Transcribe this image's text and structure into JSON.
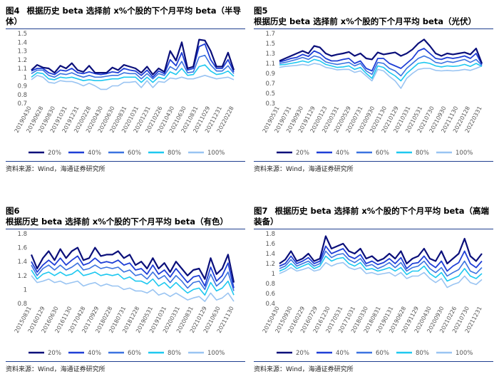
{
  "source_note": "资料来源：Wind，海通证券研究所",
  "legend_labels": [
    "20%",
    "40%",
    "60%",
    "80%",
    "100%"
  ],
  "series_colors": [
    "#0a0f7a",
    "#1f3fd6",
    "#3b73e0",
    "#1ec8f0",
    "#99c4f2"
  ],
  "chart_data": [
    {
      "id": "fig4",
      "type": "line",
      "fig_label": "图4",
      "title": "根据历史 beta 选择前 x%个股的下个月平均 beta（半导体）",
      "ylim": [
        0.7,
        1.5
      ],
      "yticks": [
        "0.7",
        "0.8",
        "0.9",
        "1",
        "1.1",
        "1.2",
        "1.3",
        "1.4",
        "1.5"
      ],
      "xticks": [
        "20190430",
        "20190628",
        "20190830",
        "20191031",
        "20191231",
        "20200228",
        "20200430",
        "20200630",
        "20200831",
        "20201031",
        "20201231",
        "20210226",
        "20210430",
        "20210630",
        "20210831",
        "20211029",
        "20211231",
        "20220228"
      ],
      "series": [
        {
          "name": "20%",
          "values": [
            1.08,
            1.14,
            1.11,
            1.1,
            1.05,
            1.13,
            1.1,
            1.16,
            1.08,
            1.06,
            1.13,
            1.05,
            1.05,
            1.05,
            1.11,
            1.08,
            1.14,
            1.12,
            1.1,
            1.05,
            1.12,
            1.03,
            1.1,
            1.06,
            1.3,
            1.19,
            1.4,
            1.1,
            1.12,
            1.43,
            1.42,
            1.3,
            1.12,
            1.12,
            1.28,
            1.08
          ]
        },
        {
          "name": "40%",
          "values": [
            1.07,
            1.1,
            1.1,
            1.05,
            1.03,
            1.08,
            1.07,
            1.1,
            1.05,
            1.04,
            1.06,
            1.04,
            1.03,
            1.04,
            1.06,
            1.05,
            1.1,
            1.08,
            1.07,
            1.02,
            1.08,
            1.0,
            1.07,
            1.04,
            1.2,
            1.13,
            1.28,
            1.08,
            1.1,
            1.35,
            1.38,
            1.2,
            1.1,
            1.1,
            1.2,
            1.06
          ]
        },
        {
          "name": "60%",
          "values": [
            1.04,
            1.08,
            1.08,
            1.02,
            1.0,
            1.04,
            1.03,
            1.05,
            1.02,
            1.0,
            1.02,
            1.0,
            1.0,
            1.01,
            1.02,
            1.02,
            1.05,
            1.04,
            1.04,
            0.98,
            1.04,
            0.98,
            1.04,
            1.02,
            1.12,
            1.08,
            1.18,
            1.05,
            1.06,
            1.23,
            1.25,
            1.14,
            1.07,
            1.07,
            1.13,
            1.04
          ]
        },
        {
          "name": "80%",
          "values": [
            1.0,
            1.05,
            1.04,
            0.98,
            0.97,
            1.0,
            0.99,
            1.0,
            0.98,
            0.96,
            0.97,
            0.96,
            0.96,
            0.97,
            0.98,
            0.98,
            1.0,
            1.0,
            1.0,
            0.94,
            1.0,
            0.94,
            1.0,
            0.98,
            1.06,
            1.03,
            1.1,
            1.02,
            1.03,
            1.12,
            1.14,
            1.07,
            1.03,
            1.04,
            1.07,
            1.01
          ]
        },
        {
          "name": "100%",
          "values": [
            0.97,
            1.02,
            1.0,
            0.94,
            0.93,
            0.96,
            0.95,
            0.95,
            0.93,
            0.9,
            0.93,
            0.9,
            0.86,
            0.86,
            0.9,
            0.9,
            0.94,
            0.94,
            0.95,
            0.88,
            0.96,
            0.88,
            0.95,
            0.94,
            0.99,
            0.98,
            1.0,
            0.98,
            0.98,
            1.0,
            1.02,
            1.0,
            0.98,
            0.99,
            1.0,
            0.97
          ]
        }
      ]
    },
    {
      "id": "fig5",
      "type": "line",
      "fig_label": "图5",
      "title": "根据历史 beta 选择前 x%个股的下个月平均 beta（光伏）",
      "ylim": [
        0.3,
        1.7
      ],
      "yticks": [
        "0.3",
        "0.5",
        "0.7",
        "0.9",
        "1.1",
        "1.3",
        "1.5",
        "1.7"
      ],
      "xticks": [
        "20190531",
        "20190731",
        "20190930",
        "20191129",
        "20200123",
        "20200331",
        "20200529",
        "20200731",
        "20200930",
        "20201130",
        "20210129",
        "20210331",
        "20210531",
        "20210730",
        "20210930",
        "20211130",
        "20220128",
        "20220331"
      ],
      "series": [
        {
          "name": "20%",
          "values": [
            1.15,
            1.2,
            1.25,
            1.3,
            1.35,
            1.3,
            1.45,
            1.42,
            1.3,
            1.25,
            1.28,
            1.3,
            1.33,
            1.25,
            1.3,
            1.2,
            1.18,
            1.32,
            1.28,
            1.3,
            1.32,
            1.25,
            1.3,
            1.38,
            1.5,
            1.58,
            1.45,
            1.3,
            1.25,
            1.3,
            1.28,
            1.3,
            1.32,
            1.28,
            1.4,
            1.1
          ]
        },
        {
          "name": "40%",
          "values": [
            1.13,
            1.16,
            1.2,
            1.22,
            1.28,
            1.24,
            1.35,
            1.3,
            1.2,
            1.15,
            1.15,
            1.18,
            1.2,
            1.1,
            1.15,
            1.0,
            0.95,
            1.2,
            1.2,
            1.1,
            1.05,
            1.0,
            1.1,
            1.2,
            1.35,
            1.4,
            1.3,
            1.2,
            1.18,
            1.22,
            1.2,
            1.22,
            1.25,
            1.2,
            1.3,
            1.08
          ]
        },
        {
          "name": "60%",
          "values": [
            1.1,
            1.12,
            1.15,
            1.18,
            1.22,
            1.18,
            1.25,
            1.22,
            1.13,
            1.1,
            1.08,
            1.1,
            1.12,
            1.05,
            1.1,
            0.95,
            0.88,
            1.12,
            1.1,
            1.0,
            0.95,
            0.85,
            1.0,
            1.1,
            1.2,
            1.25,
            1.2,
            1.12,
            1.1,
            1.14,
            1.12,
            1.15,
            1.18,
            1.12,
            1.18,
            1.06
          ]
        },
        {
          "name": "80%",
          "values": [
            1.07,
            1.08,
            1.1,
            1.12,
            1.15,
            1.12,
            1.18,
            1.15,
            1.08,
            1.05,
            1.02,
            1.03,
            1.05,
            0.98,
            1.02,
            0.9,
            0.8,
            1.05,
            1.02,
            0.92,
            0.85,
            0.75,
            0.9,
            1.0,
            1.1,
            1.12,
            1.1,
            1.05,
            1.03,
            1.05,
            1.04,
            1.05,
            1.08,
            1.04,
            1.1,
            1.04
          ]
        },
        {
          "name": "100%",
          "values": [
            1.02,
            1.04,
            1.05,
            1.06,
            1.08,
            1.06,
            1.1,
            1.08,
            1.02,
            1.0,
            0.97,
            0.98,
            0.98,
            0.92,
            0.95,
            0.85,
            0.75,
            0.98,
            0.95,
            0.84,
            0.75,
            0.6,
            0.8,
            0.9,
            0.98,
            1.0,
            1.0,
            0.96,
            0.95,
            0.96,
            0.95,
            0.96,
            0.98,
            0.96,
            1.0,
            1.05
          ]
        }
      ]
    },
    {
      "id": "fig6",
      "type": "line",
      "fig_label": "图6",
      "title": "根据历史 beta 选择前 x%个股的下个月平均 beta（有色）",
      "ylim": [
        0.8,
        1.8
      ],
      "yticks": [
        "0.8",
        "1",
        "1.2",
        "1.4",
        "1.6",
        "1.8"
      ],
      "xticks": [
        "20150831",
        "20160129",
        "20160630",
        "20161130",
        "20170428",
        "20170929",
        "20180228",
        "20180731",
        "20181228",
        "20190531",
        "20191031",
        "20200331",
        "20200831",
        "20210129",
        "20210630",
        "20211130"
      ],
      "series": [
        {
          "name": "20%",
          "values": [
            1.5,
            1.3,
            1.45,
            1.55,
            1.42,
            1.58,
            1.45,
            1.55,
            1.6,
            1.42,
            1.45,
            1.6,
            1.48,
            1.5,
            1.5,
            1.55,
            1.45,
            1.5,
            1.35,
            1.4,
            1.3,
            1.45,
            1.3,
            1.38,
            1.25,
            1.4,
            1.3,
            1.2,
            1.28,
            1.3,
            1.15,
            1.45,
            1.22,
            1.3,
            1.5,
            1.1
          ]
        },
        {
          "name": "40%",
          "values": [
            1.4,
            1.25,
            1.35,
            1.42,
            1.35,
            1.45,
            1.35,
            1.42,
            1.48,
            1.35,
            1.38,
            1.45,
            1.38,
            1.4,
            1.38,
            1.42,
            1.35,
            1.38,
            1.28,
            1.3,
            1.22,
            1.35,
            1.22,
            1.28,
            1.18,
            1.3,
            1.2,
            1.1,
            1.18,
            1.2,
            1.05,
            1.32,
            1.12,
            1.2,
            1.38,
            1.02
          ]
        },
        {
          "name": "60%",
          "values": [
            1.35,
            1.2,
            1.3,
            1.35,
            1.28,
            1.35,
            1.28,
            1.32,
            1.38,
            1.28,
            1.3,
            1.35,
            1.3,
            1.32,
            1.3,
            1.32,
            1.25,
            1.28,
            1.2,
            1.22,
            1.15,
            1.25,
            1.15,
            1.2,
            1.1,
            1.2,
            1.12,
            1.02,
            1.1,
            1.12,
            1.0,
            1.22,
            1.05,
            1.12,
            1.25,
            0.98
          ]
        },
        {
          "name": "80%",
          "values": [
            1.28,
            1.15,
            1.22,
            1.25,
            1.2,
            1.25,
            1.2,
            1.22,
            1.28,
            1.2,
            1.22,
            1.25,
            1.2,
            1.22,
            1.2,
            1.22,
            1.15,
            1.18,
            1.12,
            1.12,
            1.08,
            1.15,
            1.05,
            1.1,
            1.02,
            1.1,
            1.02,
            0.95,
            1.0,
            1.02,
            0.92,
            1.1,
            0.98,
            1.02,
            1.12,
            0.92
          ]
        },
        {
          "name": "100%",
          "values": [
            1.2,
            1.1,
            1.12,
            1.15,
            1.1,
            1.12,
            1.08,
            1.1,
            1.12,
            1.05,
            1.08,
            1.1,
            1.05,
            1.08,
            1.05,
            1.05,
            1.0,
            1.02,
            0.98,
            0.98,
            0.95,
            1.0,
            0.92,
            0.95,
            0.9,
            0.95,
            0.9,
            0.85,
            0.88,
            0.9,
            0.83,
            0.95,
            0.85,
            0.88,
            0.95,
            0.83
          ]
        }
      ]
    },
    {
      "id": "fig7",
      "type": "line",
      "fig_label": "图7",
      "title": "根据历史 beta 选择前 x%个股的下个月平均 beta（高端装备）",
      "ylim": [
        0.4,
        1.8
      ],
      "yticks": [
        "0.4",
        "0.6",
        "0.8",
        "1",
        "1.2",
        "1.4",
        "1.6",
        "1.8"
      ],
      "xticks": [
        "20150430",
        "20150930",
        "20160229",
        "20160729",
        "20161230",
        "20170531",
        "20171031",
        "20180330",
        "20180831",
        "20190131",
        "20190628",
        "20191129",
        "20200430",
        "20200930",
        "20210226",
        "20210730",
        "20211231"
      ],
      "series": [
        {
          "name": "20%",
          "values": [
            1.2,
            1.28,
            1.45,
            1.25,
            1.3,
            1.4,
            1.25,
            1.3,
            1.75,
            1.5,
            1.55,
            1.6,
            1.45,
            1.4,
            1.5,
            1.3,
            1.35,
            1.25,
            1.3,
            1.4,
            1.3,
            1.45,
            1.2,
            1.3,
            1.35,
            1.5,
            1.3,
            1.25,
            1.45,
            1.2,
            1.3,
            1.4,
            1.7,
            1.35,
            1.25,
            1.4
          ]
        },
        {
          "name": "40%",
          "values": [
            1.15,
            1.2,
            1.35,
            1.2,
            1.25,
            1.32,
            1.2,
            1.25,
            1.55,
            1.4,
            1.45,
            1.5,
            1.35,
            1.3,
            1.38,
            1.2,
            1.25,
            1.18,
            1.22,
            1.3,
            1.2,
            1.32,
            1.1,
            1.2,
            1.22,
            1.35,
            1.2,
            1.12,
            1.25,
            1.05,
            1.15,
            1.22,
            1.45,
            1.2,
            1.12,
            1.25
          ]
        },
        {
          "name": "60%",
          "values": [
            1.1,
            1.15,
            1.28,
            1.15,
            1.2,
            1.25,
            1.15,
            1.2,
            1.45,
            1.32,
            1.38,
            1.4,
            1.28,
            1.22,
            1.3,
            1.15,
            1.18,
            1.1,
            1.15,
            1.22,
            1.12,
            1.22,
            1.05,
            1.12,
            1.15,
            1.25,
            1.1,
            1.02,
            1.12,
            0.95,
            1.02,
            1.08,
            1.25,
            1.05,
            1.0,
            1.12
          ]
        },
        {
          "name": "80%",
          "values": [
            1.05,
            1.1,
            1.2,
            1.1,
            1.15,
            1.2,
            1.1,
            1.15,
            1.35,
            1.25,
            1.3,
            1.32,
            1.2,
            1.15,
            1.22,
            1.08,
            1.1,
            1.05,
            1.08,
            1.12,
            1.05,
            1.12,
            0.98,
            1.05,
            1.05,
            1.15,
            1.0,
            0.92,
            1.02,
            0.85,
            0.9,
            0.95,
            1.1,
            0.95,
            0.9,
            1.0
          ]
        },
        {
          "name": "100%",
          "values": [
            1.0,
            1.05,
            1.12,
            1.05,
            1.08,
            1.12,
            1.05,
            1.08,
            1.22,
            1.15,
            1.2,
            1.22,
            1.12,
            1.08,
            1.12,
            1.0,
            1.02,
            0.98,
            1.0,
            1.02,
            0.95,
            1.02,
            0.9,
            0.95,
            0.95,
            1.02,
            0.9,
            0.82,
            0.9,
            0.72,
            0.78,
            0.82,
            0.95,
            0.82,
            0.78,
            0.88
          ]
        }
      ]
    }
  ]
}
